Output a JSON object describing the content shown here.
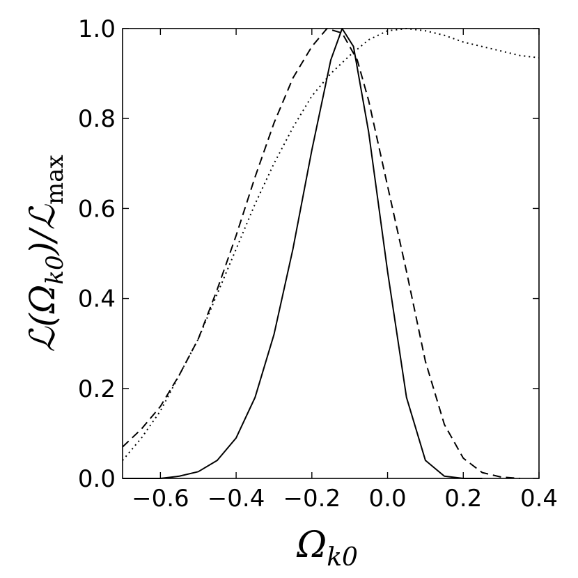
{
  "chart_data": {
    "type": "line",
    "xlabel": "Ω",
    "xlabel_sub": "k0",
    "ylabel": "ℒ(Ω",
    "ylabel_sub": "k0",
    "ylabel_tail": ")/ℒ",
    "ylabel_tail_sub": "max",
    "xlim": [
      -0.7,
      0.4
    ],
    "ylim": [
      0.0,
      1.0
    ],
    "xticks": [
      -0.6,
      -0.4,
      -0.2,
      0.0,
      0.2,
      0.4
    ],
    "xtick_labels": [
      "−0.6",
      "−0.4",
      "−0.2",
      "0.0",
      "0.2",
      "0.4"
    ],
    "yticks": [
      0.0,
      0.2,
      0.4,
      0.6,
      0.8,
      1.0
    ],
    "ytick_labels": [
      "0.0",
      "0.2",
      "0.4",
      "0.6",
      "0.8",
      "1.0"
    ],
    "grid": false,
    "line_color": "#000000",
    "series": [
      {
        "style": "solid",
        "x": [
          -0.7,
          -0.6,
          -0.55,
          -0.5,
          -0.45,
          -0.4,
          -0.35,
          -0.3,
          -0.25,
          -0.2,
          -0.15,
          -0.12,
          -0.09,
          -0.05,
          0.0,
          0.05,
          0.1,
          0.15,
          0.2,
          0.25
        ],
        "y": [
          0.0,
          0.0,
          0.005,
          0.015,
          0.04,
          0.09,
          0.18,
          0.32,
          0.51,
          0.73,
          0.93,
          1.0,
          0.96,
          0.77,
          0.46,
          0.18,
          0.04,
          0.005,
          0.0,
          0.0
        ]
      },
      {
        "style": "dashed",
        "x": [
          -0.7,
          -0.65,
          -0.6,
          -0.55,
          -0.5,
          -0.45,
          -0.4,
          -0.35,
          -0.3,
          -0.25,
          -0.2,
          -0.16,
          -0.12,
          -0.08,
          -0.05,
          0.0,
          0.05,
          0.1,
          0.15,
          0.2,
          0.25,
          0.3,
          0.35
        ],
        "y": [
          0.07,
          0.11,
          0.16,
          0.23,
          0.31,
          0.42,
          0.54,
          0.67,
          0.79,
          0.89,
          0.96,
          1.0,
          0.99,
          0.93,
          0.84,
          0.65,
          0.46,
          0.26,
          0.12,
          0.045,
          0.013,
          0.003,
          0.0
        ]
      },
      {
        "style": "dotted",
        "x": [
          -0.7,
          -0.65,
          -0.6,
          -0.55,
          -0.5,
          -0.45,
          -0.4,
          -0.35,
          -0.3,
          -0.25,
          -0.2,
          -0.15,
          -0.1,
          -0.05,
          0.0,
          0.05,
          0.1,
          0.15,
          0.2,
          0.25,
          0.3,
          0.35,
          0.4
        ],
        "y": [
          0.04,
          0.09,
          0.15,
          0.23,
          0.31,
          0.41,
          0.51,
          0.61,
          0.7,
          0.78,
          0.85,
          0.9,
          0.94,
          0.975,
          0.995,
          1.0,
          0.995,
          0.985,
          0.97,
          0.96,
          0.95,
          0.94,
          0.935
        ]
      }
    ]
  }
}
